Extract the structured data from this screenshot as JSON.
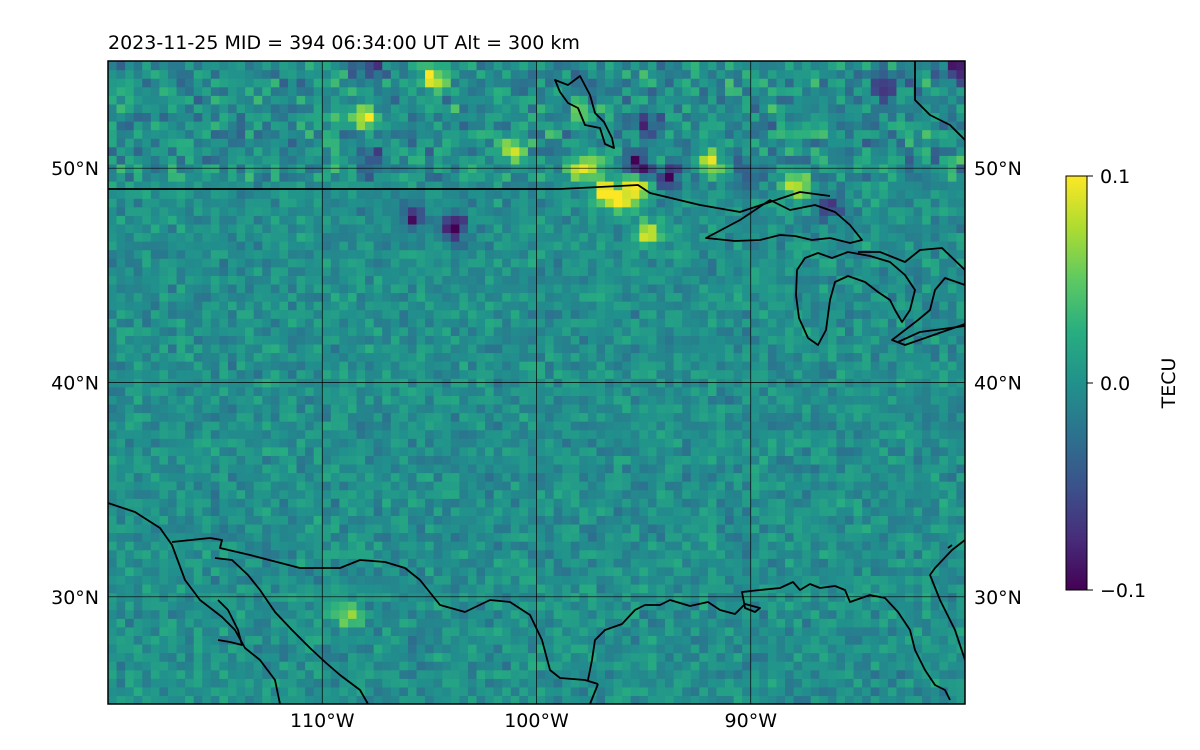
{
  "title": "2023-11-25  MID = 394    06:34:00  UT  Alt = 300 km",
  "map": {
    "type": "heatmap",
    "lon_range": [
      -120,
      -80
    ],
    "lat_range": [
      25,
      55
    ],
    "lon_ticks": [
      {
        "value": -110,
        "label": "110°W"
      },
      {
        "value": -100,
        "label": "100°W"
      },
      {
        "value": -90,
        "label": "90°W"
      }
    ],
    "lat_ticks": [
      {
        "value": 50,
        "label": "50°N"
      },
      {
        "value": 40,
        "label": "40°N"
      },
      {
        "value": 30,
        "label": "30°N"
      }
    ],
    "grid": true,
    "colormap": "viridis",
    "colors": {
      "ocean_base": "#2a8c8c",
      "land_base": "#2c7f8e",
      "coastline": "#000000"
    }
  },
  "chart_data": {
    "type": "heatmap",
    "quantity": "TECU",
    "vmin": -0.1,
    "vmax": 0.1,
    "background_mean": 0.0,
    "hotspots": [
      {
        "lon": -105,
        "lat": 54.0,
        "value": 0.075
      },
      {
        "lon": -108.2,
        "lat": 52.2,
        "value": 0.1
      },
      {
        "lon": -101.2,
        "lat": 50.6,
        "value": 0.1
      },
      {
        "lon": -98.0,
        "lat": 49.9,
        "value": 0.1
      },
      {
        "lon": -97.0,
        "lat": 48.7,
        "value": 0.1
      },
      {
        "lon": -96.2,
        "lat": 48.3,
        "value": 0.1
      },
      {
        "lon": -95.5,
        "lat": 49.0,
        "value": 0.1
      },
      {
        "lon": -88.0,
        "lat": 49.0,
        "value": 0.1
      },
      {
        "lon": -92.0,
        "lat": 50.0,
        "value": 0.07
      },
      {
        "lon": -95.0,
        "lat": 46.8,
        "value": 0.1
      },
      {
        "lon": -109.0,
        "lat": 29.0,
        "value": 0.06
      },
      {
        "lon": -98.0,
        "lat": 52.5,
        "value": 0.045
      },
      {
        "lon": -108.0,
        "lat": 54.5,
        "value": -0.06
      },
      {
        "lon": -95.0,
        "lat": 52.0,
        "value": -0.07
      },
      {
        "lon": -95.5,
        "lat": 50.0,
        "value": -0.1
      },
      {
        "lon": -94.0,
        "lat": 49.5,
        "value": -0.085
      },
      {
        "lon": -86.5,
        "lat": 48.0,
        "value": -0.07
      },
      {
        "lon": -84.0,
        "lat": 53.5,
        "value": -0.09
      },
      {
        "lon": -80.5,
        "lat": 54.5,
        "value": -0.1
      },
      {
        "lon": -104.0,
        "lat": 47.0,
        "value": -0.1
      },
      {
        "lon": -106.0,
        "lat": 47.6,
        "value": -0.08
      },
      {
        "lon": -108.0,
        "lat": 50.3,
        "value": -0.07
      },
      {
        "lon": -90.5,
        "lat": 49.5,
        "value": -0.07
      }
    ],
    "colorbar": {
      "label": "TECU",
      "ticks": [
        {
          "value": 0.1,
          "label": "0.1"
        },
        {
          "value": 0.0,
          "label": "0.0"
        },
        {
          "value": -0.1,
          "label": "−0.1"
        }
      ]
    }
  }
}
